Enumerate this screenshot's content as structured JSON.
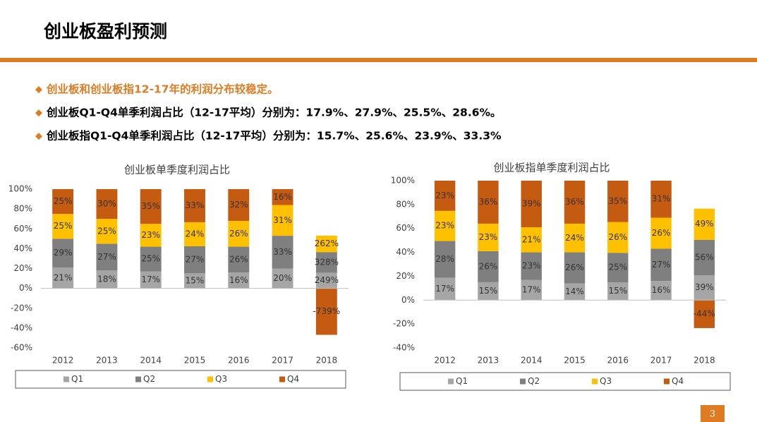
{
  "title": "创业板盈利预测",
  "bullets": [
    "创业板和创业板指12-17年的利润分布较稳定。",
    "创业板Q1-Q4单季利润占比（12-17平均）分别为：17.9%、27.9%、25.5%、28.6%。",
    "创业板指Q1-Q4单季利润占比（12-17平均）分别为：15.7%、25.6%、23.9%、33.3%"
  ],
  "page_number": "3",
  "chart_data": [
    {
      "type": "bar",
      "stacked": "percent",
      "title": "创业板单季度利润占比",
      "categories": [
        "2012",
        "2013",
        "2014",
        "2015",
        "2016",
        "2017",
        "2018"
      ],
      "series": [
        {
          "name": "Q1",
          "color": "#a5a5a5",
          "values": [
            21,
            18,
            17,
            15,
            16,
            20,
            249
          ],
          "value_labels": [
            "21%",
            "18%",
            "17%",
            "15%",
            "16%",
            "20%",
            "249%"
          ]
        },
        {
          "name": "Q2",
          "color": "#7f7f7f",
          "values": [
            29,
            27,
            25,
            27,
            26,
            33,
            328
          ],
          "value_labels": [
            "29%",
            "27%",
            "25%",
            "27%",
            "26%",
            "33%",
            "328%"
          ]
        },
        {
          "name": "Q3",
          "color": "#ffc000",
          "values": [
            25,
            25,
            23,
            24,
            26,
            31,
            262
          ],
          "value_labels": [
            "25%",
            "25%",
            "23%",
            "24%",
            "26%",
            "31%",
            "262%"
          ]
        },
        {
          "name": "Q4",
          "color": "#c55a11",
          "values": [
            25,
            30,
            35,
            33,
            32,
            16,
            -739
          ],
          "value_labels": [
            "25%",
            "30%",
            "35%",
            "33%",
            "32%",
            "16%",
            "-739%"
          ]
        }
      ],
      "ylim": [
        -60,
        100
      ],
      "yticks": [
        {
          "value": -60,
          "label": "-60%"
        },
        {
          "value": -40,
          "label": "-40%"
        },
        {
          "value": -20,
          "label": "-20%"
        },
        {
          "value": 0,
          "label": "0%"
        },
        {
          "value": 20,
          "label": "20%"
        },
        {
          "value": 40,
          "label": "40%"
        },
        {
          "value": 60,
          "label": "60%"
        },
        {
          "value": 80,
          "label": "80%"
        },
        {
          "value": 100,
          "label": "100%"
        }
      ],
      "grid": false,
      "legend": "bottom"
    },
    {
      "type": "bar",
      "stacked": "percent",
      "title": "创业板指单季度利润占比",
      "categories": [
        "2012",
        "2013",
        "2014",
        "2015",
        "2016",
        "2017",
        "2018"
      ],
      "series": [
        {
          "name": "Q1",
          "color": "#a5a5a5",
          "values": [
            17,
            15,
            17,
            14,
            15,
            16,
            39
          ],
          "value_labels": [
            "17%",
            "15%",
            "17%",
            "14%",
            "15%",
            "16%",
            "39%"
          ]
        },
        {
          "name": "Q2",
          "color": "#7f7f7f",
          "values": [
            28,
            26,
            23,
            26,
            25,
            27,
            56
          ],
          "value_labels": [
            "28%",
            "26%",
            "23%",
            "26%",
            "25%",
            "27%",
            "56%"
          ]
        },
        {
          "name": "Q3",
          "color": "#ffc000",
          "values": [
            23,
            23,
            21,
            24,
            26,
            26,
            49
          ],
          "value_labels": [
            "23%",
            "23%",
            "21%",
            "24%",
            "26%",
            "26%",
            "49%"
          ]
        },
        {
          "name": "Q4",
          "color": "#c55a11",
          "values": [
            23,
            36,
            39,
            36,
            35,
            31,
            -44
          ],
          "value_labels": [
            "23%",
            "36%",
            "39%",
            "36%",
            "35%",
            "31%",
            "-44%"
          ]
        }
      ],
      "ylim": [
        -40,
        100
      ],
      "yticks": [
        {
          "value": -40,
          "label": "-40%"
        },
        {
          "value": -20,
          "label": "-20%"
        },
        {
          "value": 0,
          "label": "0%"
        },
        {
          "value": 20,
          "label": "20%"
        },
        {
          "value": 40,
          "label": "40%"
        },
        {
          "value": 60,
          "label": "60%"
        },
        {
          "value": 80,
          "label": "80%"
        },
        {
          "value": 100,
          "label": "100%"
        }
      ],
      "grid": false,
      "legend": "bottom"
    }
  ]
}
